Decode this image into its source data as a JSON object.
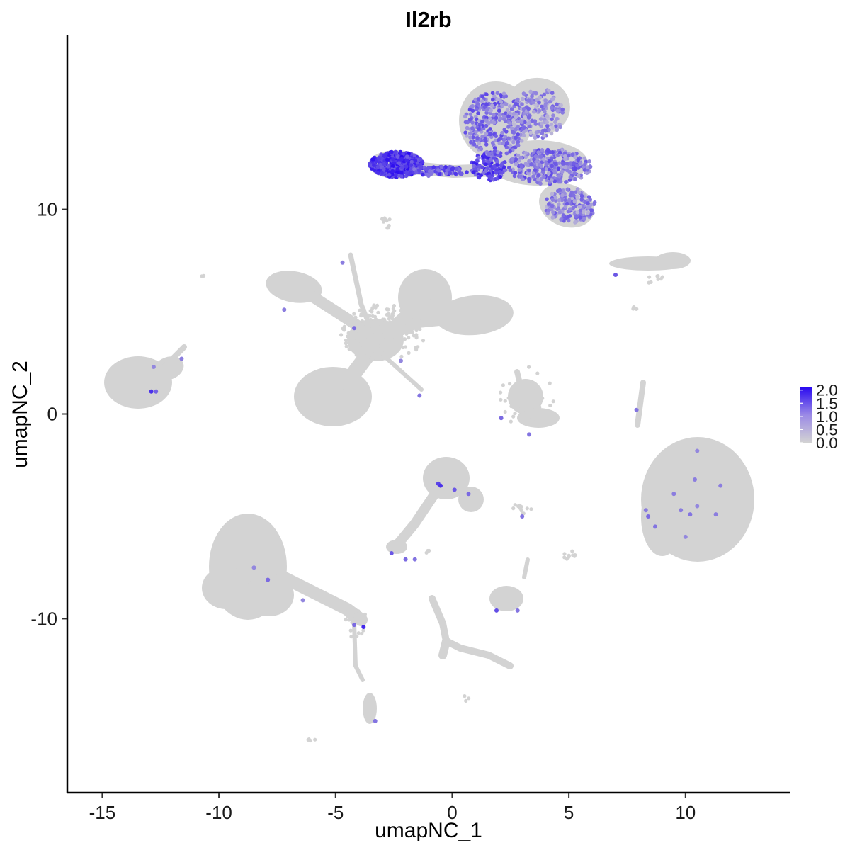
{
  "chart_data": {
    "type": "scatter",
    "title": "Il2rb",
    "xlabel": "umapNC_1",
    "ylabel": "umapNC_2",
    "xlim": [
      -16.5,
      14.5
    ],
    "ylim": [
      -18.5,
      18.5
    ],
    "xticks": [
      -15,
      -10,
      -5,
      0,
      5,
      10
    ],
    "yticks": [
      -10,
      0,
      10
    ],
    "xtick_labels": [
      "-15",
      "-10",
      "-5",
      "0",
      "5",
      "10"
    ],
    "ytick_labels": [
      "-10",
      "0",
      "10"
    ],
    "grid": false,
    "legend": {
      "placement": "right",
      "type": "colorbar",
      "min": 0.0,
      "max": 2.1,
      "labels": [
        "2.0",
        "1.5",
        "1.0",
        "0.5",
        "0.0"
      ],
      "label_values": [
        2.0,
        1.5,
        1.0,
        0.5,
        0.0
      ],
      "color_low": "#d3d3d3",
      "color_high": "#2b0bf0"
    },
    "background_color": "#d3d3d3",
    "expression_points": [
      {
        "x": -12.9,
        "y": 1.1,
        "v": 1.7
      },
      {
        "x": -12.7,
        "y": 1.1,
        "v": 1.2
      },
      {
        "x": -11.6,
        "y": 2.7,
        "v": 0.9
      },
      {
        "x": -12.8,
        "y": 2.3,
        "v": 0.8
      },
      {
        "x": -7.2,
        "y": 5.1,
        "v": 0.9
      },
      {
        "x": -4.7,
        "y": 7.4,
        "v": 0.9
      },
      {
        "x": -4.2,
        "y": 4.2,
        "v": 1.1
      },
      {
        "x": -2.2,
        "y": 2.6,
        "v": 0.8
      },
      {
        "x": -1.4,
        "y": 0.9,
        "v": 1.0
      },
      {
        "x": 2.1,
        "y": -0.2,
        "v": 1.1
      },
      {
        "x": 3.3,
        "y": -1.0,
        "v": 1.0
      },
      {
        "x": 7.0,
        "y": 6.8,
        "v": 1.3
      },
      {
        "x": 7.9,
        "y": 0.2,
        "v": 1.0
      },
      {
        "x": -0.6,
        "y": -3.4,
        "v": 1.5
      },
      {
        "x": -0.5,
        "y": -3.5,
        "v": 1.7
      },
      {
        "x": 0.1,
        "y": -3.7,
        "v": 1.3
      },
      {
        "x": 0.7,
        "y": -3.9,
        "v": 1.1
      },
      {
        "x": 3.0,
        "y": -5.0,
        "v": 1.0
      },
      {
        "x": -2.6,
        "y": -6.8,
        "v": 1.3
      },
      {
        "x": -2.0,
        "y": -7.1,
        "v": 1.1
      },
      {
        "x": -1.6,
        "y": -7.1,
        "v": 1.0
      },
      {
        "x": 1.9,
        "y": -9.6,
        "v": 1.4
      },
      {
        "x": 2.8,
        "y": -9.6,
        "v": 1.0
      },
      {
        "x": -8.5,
        "y": -7.5,
        "v": 0.8
      },
      {
        "x": -7.9,
        "y": -8.1,
        "v": 1.1
      },
      {
        "x": -6.4,
        "y": -9.1,
        "v": 0.8
      },
      {
        "x": -4.2,
        "y": -10.3,
        "v": 1.1
      },
      {
        "x": -3.8,
        "y": -10.4,
        "v": 1.8
      },
      {
        "x": -3.3,
        "y": -15.0,
        "v": 1.0
      },
      {
        "x": 8.3,
        "y": -4.7,
        "v": 0.9
      },
      {
        "x": 8.4,
        "y": -5.0,
        "v": 1.1
      },
      {
        "x": 8.7,
        "y": -5.5,
        "v": 1.0
      },
      {
        "x": 9.5,
        "y": -3.9,
        "v": 0.9
      },
      {
        "x": 9.8,
        "y": -4.7,
        "v": 0.9
      },
      {
        "x": 10.2,
        "y": -4.9,
        "v": 1.0
      },
      {
        "x": 10.4,
        "y": -3.2,
        "v": 0.9
      },
      {
        "x": 10.5,
        "y": -4.5,
        "v": 0.8
      },
      {
        "x": 11.3,
        "y": -4.9,
        "v": 0.9
      },
      {
        "x": 11.5,
        "y": -3.5,
        "v": 0.9
      },
      {
        "x": 10.5,
        "y": -1.8,
        "v": 0.8
      },
      {
        "x": 10.0,
        "y": -6.0,
        "v": 0.8
      }
    ]
  }
}
